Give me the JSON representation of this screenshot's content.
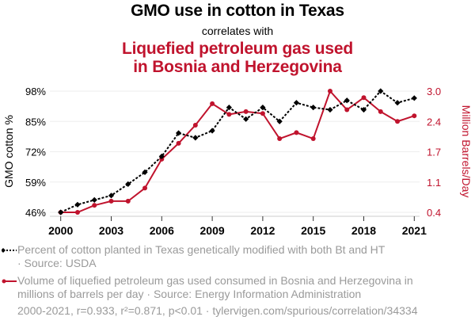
{
  "header": {
    "title": "GMO use in cotton in Texas",
    "connector": "correlates with",
    "subtitle_line1": "Liquefied petroleum gas used",
    "subtitle_line2": "in Bosnia and Herzegovina"
  },
  "colors": {
    "series1": "#000000",
    "series2": "#C0132D",
    "grid": "#eeeeee",
    "legend_text": "#9a9a9a"
  },
  "chart_data": {
    "type": "line",
    "title": "GMO use in cotton in Texas correlates with Liquefied petroleum gas used in Bosnia and Herzegovina",
    "x": [
      2000,
      2001,
      2002,
      2003,
      2004,
      2005,
      2006,
      2007,
      2008,
      2009,
      2010,
      2011,
      2012,
      2013,
      2014,
      2015,
      2016,
      2017,
      2018,
      2019,
      2020,
      2021
    ],
    "x_ticks": [
      "2000",
      "2003",
      "2006",
      "2009",
      "2012",
      "2015",
      "2018",
      "2021"
    ],
    "xlim": [
      2000,
      2021
    ],
    "grid": true,
    "series": [
      {
        "name": "Percent of cotton planted in Texas genetically modified with both Bt and HT",
        "axis": "left",
        "style": "dotted-with-diamonds",
        "values": [
          46,
          49.3,
          51.3,
          53.2,
          58.1,
          63.2,
          70,
          80,
          78,
          81,
          91,
          86,
          91,
          85,
          93,
          91,
          90,
          94,
          90,
          98,
          93,
          95
        ]
      },
      {
        "name": "Volume of liquefied petroleum gas used consumed in Bosnia and Herzegovina in millions of barrels per day",
        "axis": "right",
        "style": "solid-with-circles",
        "values": [
          0.4,
          0.4,
          0.55,
          0.64,
          0.64,
          0.92,
          1.54,
          1.88,
          2.27,
          2.73,
          2.5,
          2.56,
          2.52,
          1.98,
          2.11,
          1.98,
          3.0,
          2.6,
          2.86,
          2.56,
          2.35,
          2.47
        ]
      }
    ],
    "left_axis": {
      "label": "GMO cotton %",
      "ylim": [
        46,
        98
      ],
      "ticks": [
        46,
        59,
        72,
        85,
        98
      ],
      "tick_labels": [
        "46%",
        "59%",
        "72%",
        "85%",
        "98%"
      ]
    },
    "right_axis": {
      "label": "Million Barrels/Day",
      "ylim": [
        0.4,
        3.0
      ],
      "ticks": [
        0.4,
        1.05,
        1.7,
        2.35,
        3.0
      ],
      "tick_labels": [
        "0.4",
        "1.1",
        "1.7",
        "2.4",
        "3.0"
      ]
    },
    "legend_placement": "bottom"
  },
  "legend": {
    "item1_line1": "Percent of cotton planted in Texas genetically modified with both Bt and HT",
    "item1_line2": "· Source: USDA",
    "item2_line1": "Volume of liquefied petroleum gas used consumed in Bosnia and Herzegovina in",
    "item2_line2": "millions of barrels per day · Source: Energy Information Administration"
  },
  "footer": {
    "stats": "2000-2021, r=0.933, r²=0.871, p<0.01 · tylervigen.com/spurious/correlation/34334"
  }
}
